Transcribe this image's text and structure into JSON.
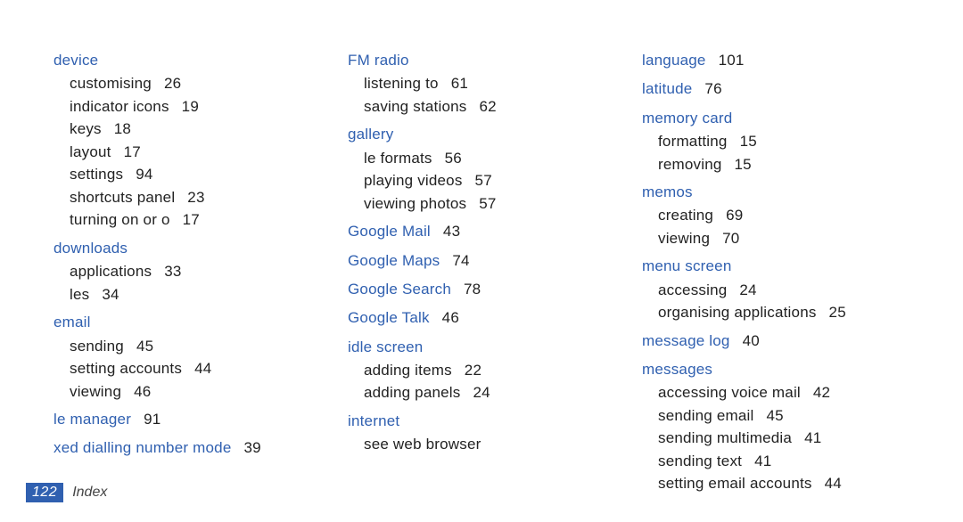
{
  "colors": {
    "heading_color": "#3060b0",
    "text_color": "#222222",
    "page_num_bg": "#3060b0",
    "page_num_fg": "#ffffff",
    "background": "#ffffff"
  },
  "footer": {
    "page_number": "122",
    "title": "Index"
  },
  "columns": [
    [
      {
        "heading": "device",
        "sub": [
          {
            "label": "customising",
            "page": "26"
          },
          {
            "label": "indicator icons",
            "page": "19"
          },
          {
            "label": "keys",
            "page": "18"
          },
          {
            "label": "layout",
            "page": "17"
          },
          {
            "label": "settings",
            "page": "94"
          },
          {
            "label": "shortcuts panel",
            "page": "23"
          },
          {
            "label": "turning on or o",
            "page": "17"
          }
        ]
      },
      {
        "heading": "downloads",
        "sub": [
          {
            "label": "applications",
            "page": "33"
          },
          {
            "label": "les",
            "page": "34"
          }
        ]
      },
      {
        "heading": "email",
        "sub": [
          {
            "label": "sending",
            "page": "45"
          },
          {
            "label": "setting accounts",
            "page": "44"
          },
          {
            "label": "viewing",
            "page": "46"
          }
        ]
      },
      {
        "heading": "le manager",
        "page": "91"
      },
      {
        "heading": "xed dialling number mode",
        "page": "39"
      }
    ],
    [
      {
        "heading": "FM radio",
        "sub": [
          {
            "label": "listening to",
            "page": "61"
          },
          {
            "label": "saving stations",
            "page": "62"
          }
        ]
      },
      {
        "heading": "gallery",
        "sub": [
          {
            "label": "le formats",
            "page": "56"
          },
          {
            "label": "playing videos",
            "page": "57"
          },
          {
            "label": "viewing photos",
            "page": "57"
          }
        ]
      },
      {
        "heading": "Google Mail",
        "page": "43"
      },
      {
        "heading": "Google Maps",
        "page": "74"
      },
      {
        "heading": "Google Search",
        "page": "78"
      },
      {
        "heading": "Google Talk",
        "page": "46"
      },
      {
        "heading": "idle screen",
        "sub": [
          {
            "label": "adding items",
            "page": "22"
          },
          {
            "label": "adding panels",
            "page": "24"
          }
        ]
      },
      {
        "heading": "internet",
        "sub": [
          {
            "label": "see web browser"
          }
        ]
      }
    ],
    [
      {
        "heading": "language",
        "page": "101"
      },
      {
        "heading": "latitude",
        "page": "76"
      },
      {
        "heading": "memory card",
        "sub": [
          {
            "label": "formatting",
            "page": "15"
          },
          {
            "label": "removing",
            "page": "15"
          }
        ]
      },
      {
        "heading": "memos",
        "sub": [
          {
            "label": "creating",
            "page": "69"
          },
          {
            "label": "viewing",
            "page": "70"
          }
        ]
      },
      {
        "heading": "menu screen",
        "sub": [
          {
            "label": "accessing",
            "page": "24"
          },
          {
            "label": "organising applications",
            "page": "25"
          }
        ]
      },
      {
        "heading": "message log",
        "page": "40"
      },
      {
        "heading": "messages",
        "sub": [
          {
            "label": "accessing voice mail",
            "page": "42"
          },
          {
            "label": "sending email",
            "page": "45"
          },
          {
            "label": "sending multimedia",
            "page": "41"
          },
          {
            "label": "sending text",
            "page": "41"
          },
          {
            "label": "setting email accounts",
            "page": "44"
          }
        ]
      }
    ]
  ]
}
